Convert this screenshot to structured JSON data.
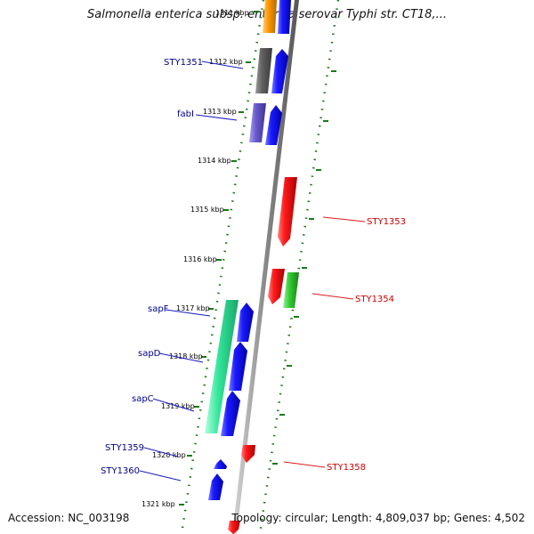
{
  "title": "Salmonella enterica subsp. enterica serovar Typhi str. CT18,...",
  "accession": "Accession: NC_003198",
  "topology": "Topology: circular; Length: 4,809,037 bp; Genes: 4,502",
  "colors": {
    "backbone": "#8a8a8a",
    "tick_track": "#1a7a1a",
    "forward_gene": "#0000ee",
    "reverse_gene": "#ee0000",
    "label_blue": "#00008b",
    "label_red": "#cc0000"
  },
  "scale_ticks": [
    {
      "label": "1311 kbp"
    },
    {
      "label": "1312 kbp"
    },
    {
      "label": "1313 kbp"
    },
    {
      "label": "1314 kbp"
    },
    {
      "label": "1315 kbp"
    },
    {
      "label": "1316 kbp"
    },
    {
      "label": "1317 kbp"
    },
    {
      "label": "1318 kbp"
    },
    {
      "label": "1319 kbp"
    },
    {
      "label": "1320 kbp"
    },
    {
      "label": "1321 kbp"
    }
  ],
  "gene_labels_left": [
    {
      "text": "STY1351"
    },
    {
      "text": "fabI"
    },
    {
      "text": "sapF"
    },
    {
      "text": "sapD"
    },
    {
      "text": "sapC"
    },
    {
      "text": "STY1359"
    },
    {
      "text": "STY1360"
    }
  ],
  "gene_labels_right": [
    {
      "text": "STY1353"
    },
    {
      "text": "STY1354"
    },
    {
      "text": "STY1358"
    }
  ]
}
